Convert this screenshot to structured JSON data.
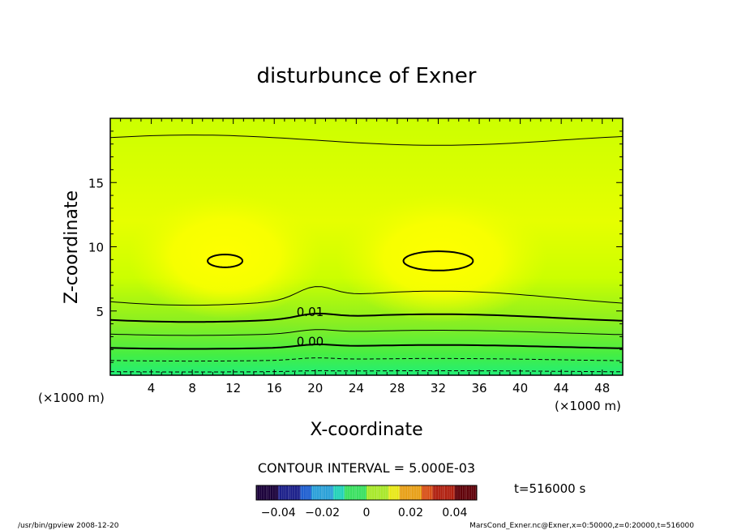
{
  "chart_data": {
    "type": "heatmap",
    "title": "disturbunce of Exner",
    "xlabel": "X-coordinate",
    "ylabel": "Z-coordinate",
    "x_unit_left": "(×1000 m)",
    "x_unit_right": "(×1000 m)",
    "xlim": [
      0,
      50
    ],
    "ylim": [
      0,
      20
    ],
    "x_ticks": [
      4,
      8,
      12,
      16,
      20,
      24,
      28,
      32,
      36,
      40,
      44,
      48
    ],
    "y_ticks": [
      5,
      10,
      15
    ],
    "contour_labels": [
      {
        "text": "0.01",
        "x": 19.5,
        "y": 4.6
      },
      {
        "text": "0.00",
        "x": 19.5,
        "y": 2.3
      }
    ],
    "contour_interval_text": "CONTOUR INTERVAL = 5.000E-03",
    "time_text": "t=516000 s",
    "colorbar": {
      "range": [
        -0.05,
        0.05
      ],
      "tick_labels": [
        "−0.04",
        "−0.02",
        "0",
        "0.02",
        "0.04"
      ],
      "tick_values": [
        -0.04,
        -0.02,
        0,
        0.02,
        0.04
      ],
      "colors_low_to_high": [
        "#1a003a",
        "#1b1f8a",
        "#1f5fd0",
        "#2aa0d8",
        "#22d2b8",
        "#3ae060",
        "#a8e82a",
        "#e8e818",
        "#e8a018",
        "#d85018",
        "#b02010",
        "#600008"
      ]
    },
    "field_colors": {
      "high": "#ffff00",
      "mid": "#ccff00",
      "low": "#22ee66"
    },
    "grid": false
  },
  "footer": {
    "left": "/usr/bin/gpview   2008-12-20",
    "right": "MarsCond_Exner.nc@Exner,x=0:50000,z=0:20000,t=516000"
  }
}
